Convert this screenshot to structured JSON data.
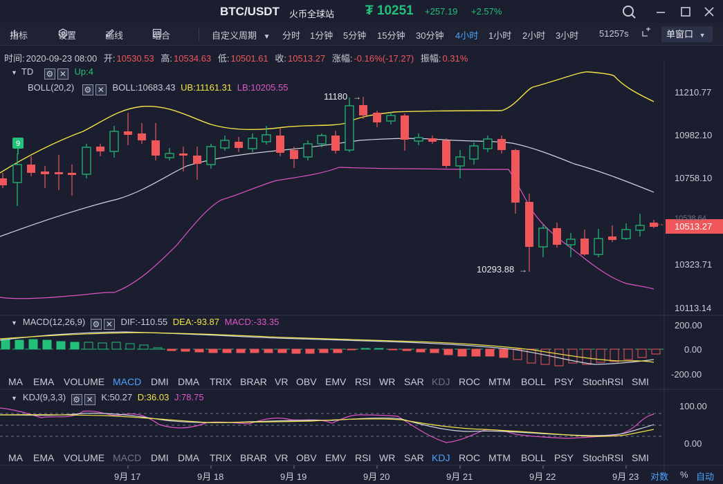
{
  "header": {
    "pair": "BTC/USDT",
    "exchange": "火币全球站",
    "price": "₮ 10251",
    "change_abs": "+257.19",
    "change_pct": "+2.57%"
  },
  "toolbar": {
    "indicators": "指标",
    "settings": "设置",
    "draw": "画线",
    "combine": "组合",
    "custom_period": "自定义周期",
    "periods": [
      "分时",
      "1分钟",
      "5分钟",
      "15分钟",
      "30分钟",
      "4小时",
      "1小时",
      "2小时",
      "3小时"
    ],
    "active_period": "4小时",
    "countdown": "51257s",
    "window_mode": "单窗口"
  },
  "ohlc": {
    "time_label": "时间:",
    "time": "2020-09-23 08:00",
    "open_label": "开:",
    "open": "10530.53",
    "high_label": "高:",
    "high": "10534.63",
    "low_label": "低:",
    "low": "10501.61",
    "close_label": "收:",
    "close": "10513.27",
    "amp_label": "涨幅:",
    "amp": "-0.16%(-17.27)",
    "swing_label": "振幅:",
    "swing": "0.31%"
  },
  "main_indicators": {
    "td_name": "TD",
    "td_value": "Up:4",
    "boll_name": "BOLL(20,2)",
    "boll_mid": "BOLL:10683.43",
    "boll_ub": "UB:11161.31",
    "boll_lb": "LB:10205.55",
    "td_count": "9"
  },
  "main_axis": [
    "11210.77",
    "10982.10",
    "10758.10",
    "10538.64",
    "10323.71",
    "10113.14"
  ],
  "current_price_tag": "10513.27",
  "annotations": {
    "high": "11180",
    "low": "10293.88"
  },
  "macd": {
    "name": "MACD(12,26,9)",
    "dif": "DIF:-110.55",
    "dea": "DEA:-93.87",
    "macd": "MACD:-33.35",
    "axis": [
      "200.00",
      "0.00",
      "-200.00"
    ]
  },
  "kdj": {
    "name": "KDJ(9,3,3)",
    "k": "K:50.27",
    "d": "D:36.03",
    "j": "J:78.75",
    "axis": [
      "100.00",
      "0.00"
    ]
  },
  "indicator_tabs": [
    "MA",
    "EMA",
    "VOLUME",
    "MACD",
    "DMI",
    "DMA",
    "TRIX",
    "BRAR",
    "VR",
    "OBV",
    "EMV",
    "RSI",
    "WR",
    "SAR",
    "KDJ",
    "ROC",
    "MTM",
    "BOLL",
    "PSY",
    "StochRSI",
    "SMI"
  ],
  "dates": [
    "9月 17",
    "9月 18",
    "9月 19",
    "9月 20",
    "9月 21",
    "9月 22",
    "9月 23"
  ],
  "footer": {
    "log": "对数",
    "pct": "%",
    "auto": "自动"
  },
  "colors": {
    "up": "#23c07a",
    "down": "#f0575a",
    "boll_ub": "#f5e447",
    "boll_lb": "#e055c8",
    "boll_mid": "#d0d4e0",
    "active": "#4aa3ff"
  }
}
